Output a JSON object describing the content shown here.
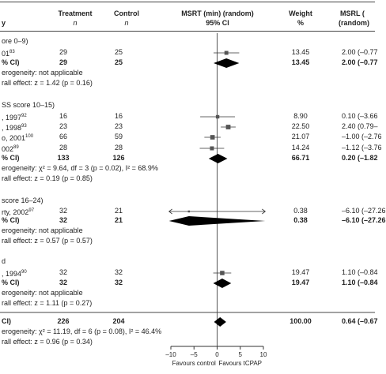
{
  "header": {
    "study": "y",
    "treatment": "Treatment",
    "treatment_n": "n",
    "control": "Control",
    "control_n": "n",
    "msrt": "MSRT (min) (random)",
    "ci": "95% CI",
    "weight": "Weight",
    "weight_unit": "%",
    "msrl": "MSRL (",
    "msrl_sub": "(random)"
  },
  "rows": [
    {
      "label": "ore 0–9)",
      "kind": "group"
    },
    {
      "label": "01",
      "sup": "83",
      "treatment": "29",
      "control": "25",
      "weight": "13.45",
      "msrl": "2.00 (–0.77"
    },
    {
      "label": "% CI)",
      "treatment": "29",
      "control": "25",
      "weight": "13.45",
      "msrl": "2.00 (–0.77",
      "kind": "subtotal"
    },
    {
      "label": "erogeneity: not applicable",
      "kind": "note"
    },
    {
      "label": "rall effect: z = 1.42 (p = 0.16)",
      "kind": "note"
    },
    {
      "label": "SS score 10–15)",
      "kind": "group"
    },
    {
      "label": ", 1997",
      "sup": "92",
      "treatment": "16",
      "control": "16",
      "weight": "8.90",
      "msrl": "0.10 (–3.66"
    },
    {
      "label": ", 1998",
      "sup": "93",
      "treatment": "23",
      "control": "23",
      "weight": "22.50",
      "msrl": "2.40 (0.79–"
    },
    {
      "label": "o, 2001",
      "sup": "100",
      "treatment": "66",
      "control": "59",
      "weight": "21.07",
      "msrl": "–1.00 (–2.76"
    },
    {
      "label": "002",
      "sup": "89",
      "treatment": "28",
      "control": "28",
      "weight": "14.24",
      "msrl": "–1.12 (–3.76"
    },
    {
      "label": "% CI)",
      "treatment": "133",
      "control": "126",
      "weight": "66.71",
      "msrl": "0.20 (–1.82",
      "kind": "subtotal"
    },
    {
      "label": "erogeneity: χ² = 9.64, df = 3 (p = 0.02), I² = 68.9%",
      "kind": "note"
    },
    {
      "label": "rall effect: z = 0.19 (p = 0.85)",
      "kind": "note"
    },
    {
      "label": "score 16–24)",
      "kind": "group"
    },
    {
      "label": "rty, 2002",
      "sup": "97",
      "treatment": "32",
      "control": "21",
      "weight": "0.38",
      "msrl": "–6.10 (–27.26"
    },
    {
      "label": "% CI)",
      "treatment": "32",
      "control": "21",
      "weight": "0.38",
      "msrl": "–6.10 (–27.26",
      "kind": "subtotal"
    },
    {
      "label": "erogeneity: not applicable",
      "kind": "note"
    },
    {
      "label": "rall effect: z = 0.57 (p = 0.57)",
      "kind": "note"
    },
    {
      "label": "d",
      "kind": "group"
    },
    {
      "label": ", 1994",
      "sup": "90",
      "treatment": "32",
      "control": "32",
      "weight": "19.47",
      "msrl": "1.10 (–0.84"
    },
    {
      "label": "% CI)",
      "treatment": "32",
      "control": "32",
      "weight": "19.47",
      "msrl": "1.10 (–0.84",
      "kind": "subtotal"
    },
    {
      "label": "erogeneity: not applicable",
      "kind": "note"
    },
    {
      "label": "rall effect: z = 1.11 (p = 0.27)",
      "kind": "note"
    },
    {
      "label": "CI)",
      "treatment": "226",
      "control": "204",
      "weight": "100.00",
      "msrl": "0.64 (–0.67",
      "kind": "total"
    },
    {
      "label": "erogeneity: χ² = 11.19, df = 6 (p = 0.08), I² = 46.4%",
      "kind": "note"
    },
    {
      "label": "rall effect: z = 0.96 (p = 0.34)",
      "kind": "note"
    }
  ],
  "chart_data": {
    "type": "forest",
    "xlim": [
      -10,
      10
    ],
    "xticks": [
      "–10",
      "–5",
      "0",
      "5",
      "10"
    ],
    "xtick_values": [
      -10,
      -5,
      0,
      5,
      10
    ],
    "favours_left": "Favours control",
    "favours_right": "Favours tCPAP",
    "studies": [
      {
        "row": 1,
        "mean": 2.0,
        "lo": -0.77,
        "hi": 4.77,
        "weight": 13.45
      },
      {
        "row": 6,
        "mean": 0.1,
        "lo": -3.66,
        "hi": 3.86,
        "weight": 8.9
      },
      {
        "row": 7,
        "mean": 2.4,
        "lo": 0.79,
        "hi": 4.01,
        "weight": 22.5
      },
      {
        "row": 8,
        "mean": -1.0,
        "lo": -2.76,
        "hi": 0.76,
        "weight": 21.07
      },
      {
        "row": 9,
        "mean": -1.12,
        "lo": -3.76,
        "hi": 1.52,
        "weight": 14.24
      },
      {
        "row": 14,
        "mean": -6.1,
        "lo": -27.26,
        "hi": 15.06,
        "weight": 0.38
      },
      {
        "row": 19,
        "mean": 1.1,
        "lo": -0.84,
        "hi": 3.04,
        "weight": 19.47
      }
    ],
    "diamonds": [
      {
        "row": 2,
        "mean": 2.0,
        "lo": -0.77,
        "hi": 4.77
      },
      {
        "row": 10,
        "mean": 0.2,
        "lo": -1.82,
        "hi": 2.22
      },
      {
        "row": 15,
        "mean": -6.1,
        "lo": -27.26,
        "hi": 15.06
      },
      {
        "row": 20,
        "mean": 1.1,
        "lo": -0.84,
        "hi": 3.04
      },
      {
        "row": 23,
        "mean": 0.64,
        "lo": -0.67,
        "hi": 1.95
      }
    ]
  }
}
